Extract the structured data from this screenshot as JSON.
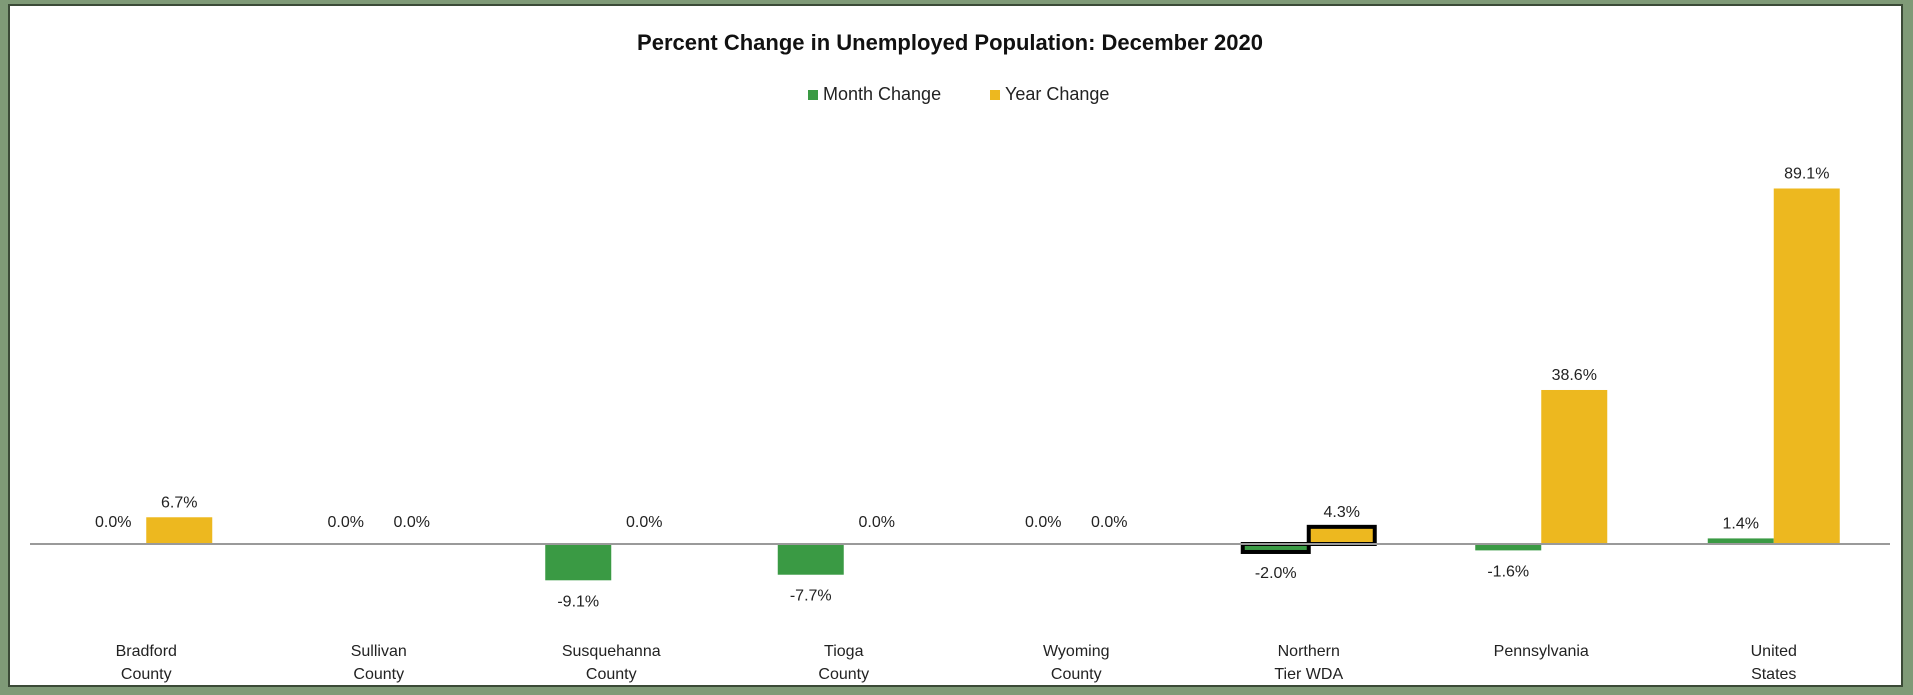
{
  "chart_data": {
    "type": "bar",
    "title": "Percent Change in Unemployed Population: December 2020",
    "categories": [
      [
        "Bradford",
        "County"
      ],
      [
        "Sullivan",
        "County"
      ],
      [
        "Susquehanna",
        "County"
      ],
      [
        "Tioga",
        "County"
      ],
      [
        "Wyoming",
        "County"
      ],
      [
        "Northern",
        "Tier WDA"
      ],
      [
        "Pennsylvania"
      ],
      [
        "United",
        "States"
      ]
    ],
    "series": [
      {
        "name": "Month Change",
        "color": "#3a9a44",
        "values": [
          0.0,
          0.0,
          -9.1,
          -7.7,
          0.0,
          -2.0,
          -1.6,
          1.4
        ],
        "labels": [
          "0.0%",
          "0.0%",
          "-9.1%",
          "-7.7%",
          "0.0%",
          "-2.0%",
          "-1.6%",
          "1.4%"
        ]
      },
      {
        "name": "Year Change",
        "color": "#edb81f",
        "values": [
          6.7,
          0.0,
          0.0,
          0.0,
          0.0,
          4.3,
          38.6,
          89.1
        ],
        "labels": [
          "6.7%",
          "0.0%",
          "0.0%",
          "0.0%",
          "0.0%",
          "4.3%",
          "38.6%",
          "89.1%"
        ]
      }
    ],
    "highlighted_category": "Northern Tier WDA",
    "legend_position": "top-center",
    "grid": false,
    "ylim": [
      -12,
      92
    ]
  }
}
